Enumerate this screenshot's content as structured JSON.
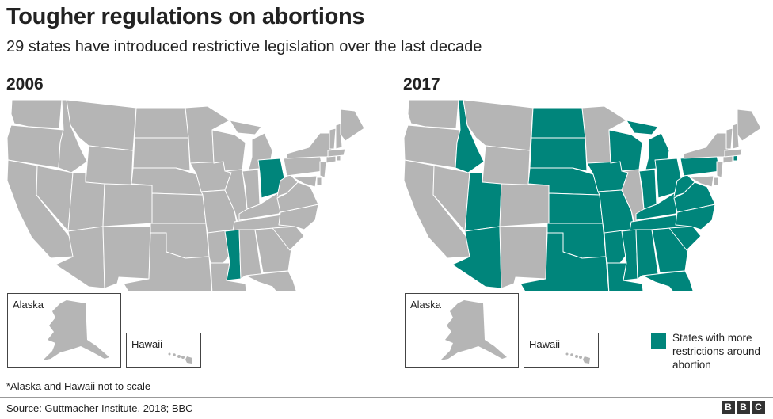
{
  "header": {
    "title": "Tougher regulations on abortions",
    "subtitle": "29 states have introduced restrictive legislation over the last decade"
  },
  "colors": {
    "restricted": "#00857b",
    "other": "#b5b5b5",
    "border": "#ffffff"
  },
  "maps": [
    {
      "year": "2006",
      "alaska_label": "Alaska",
      "hawaii_label": "Hawaii",
      "restricted_states": [
        "Ohio",
        "Mississippi"
      ]
    },
    {
      "year": "2017",
      "alaska_label": "Alaska",
      "hawaii_label": "Hawaii",
      "restricted_states": [
        "Idaho",
        "Utah",
        "Arizona",
        "North Dakota",
        "South Dakota",
        "Nebraska",
        "Kansas",
        "Oklahoma",
        "Texas",
        "Iowa",
        "Missouri",
        "Arkansas",
        "Louisiana",
        "Wisconsin",
        "Michigan",
        "Indiana",
        "Ohio",
        "Kentucky",
        "Tennessee",
        "Mississippi",
        "Alabama",
        "Georgia",
        "Florida",
        "South Carolina",
        "North Carolina",
        "Virginia",
        "West Virginia",
        "Pennsylvania",
        "Rhode Island"
      ]
    }
  ],
  "legend": {
    "label": "States with more restrictions around abortion"
  },
  "footnote": "*Alaska and Hawaii not to scale",
  "source": "Source: Guttmacher Institute, 2018; BBC",
  "brand": [
    "B",
    "B",
    "C"
  ]
}
